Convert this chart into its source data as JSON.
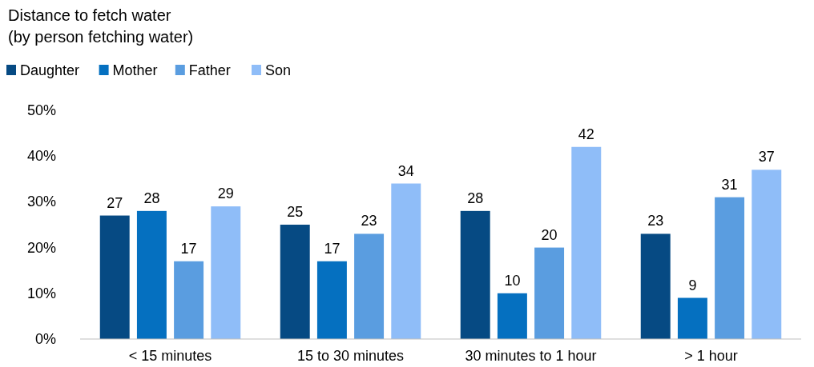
{
  "chart_data": {
    "type": "bar",
    "title": "Distance to fetch water",
    "subtitle": "(by person fetching water)",
    "categories": [
      "< 15 minutes",
      "15 to 30 minutes",
      "30 minutes to 1 hour",
      "> 1 hour"
    ],
    "series": [
      {
        "name": "Daughter",
        "color": "#064a83",
        "values": [
          27,
          25,
          28,
          23
        ]
      },
      {
        "name": "Mother",
        "color": "#0570c0",
        "values": [
          28,
          17,
          10,
          9
        ]
      },
      {
        "name": "Father",
        "color": "#5a9de0",
        "values": [
          17,
          23,
          20,
          31
        ]
      },
      {
        "name": "Son",
        "color": "#8fbdf8",
        "values": [
          29,
          34,
          42,
          37
        ]
      }
    ],
    "ylim": [
      0,
      50
    ],
    "yticks": [
      {
        "value": 0,
        "label": "0%"
      },
      {
        "value": 10,
        "label": "10%"
      },
      {
        "value": 20,
        "label": "20%"
      },
      {
        "value": 30,
        "label": "30%"
      },
      {
        "value": 40,
        "label": "40%"
      },
      {
        "value": 50,
        "label": "50%"
      }
    ],
    "data_labels": true,
    "legend": "top left",
    "grid": false
  }
}
